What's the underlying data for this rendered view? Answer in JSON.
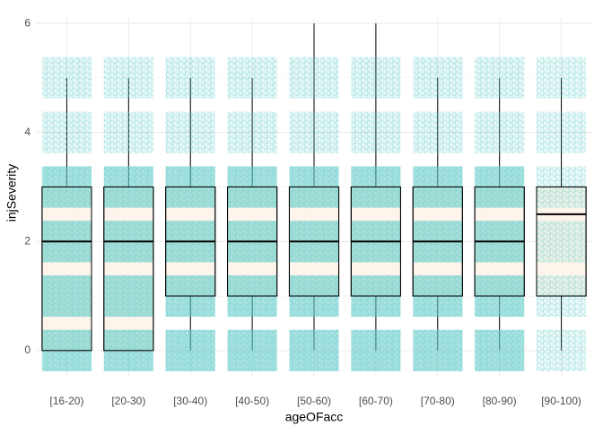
{
  "chart_data": {
    "type": "box",
    "x_label": "ageOFacc",
    "y_label": "injSeverity",
    "categories": [
      "[16-20)",
      "[20-30)",
      "[30-40)",
      "[40-50)",
      "[50-60)",
      "[60-70)",
      "[70-80)",
      "[80-90)",
      "[90-100)"
    ],
    "min": [
      0,
      0,
      0,
      0,
      0,
      0,
      0,
      0,
      0
    ],
    "q1": [
      0,
      0,
      1,
      1,
      1,
      1,
      1,
      1,
      1
    ],
    "median": [
      2,
      2,
      2,
      2,
      2,
      2,
      2,
      2,
      2.5
    ],
    "q3": [
      3,
      3,
      3,
      3,
      3,
      3,
      3,
      3,
      3
    ],
    "max": [
      5,
      5,
      5,
      5,
      6,
      6,
      5,
      5,
      5
    ],
    "point_levels": [
      0,
      1,
      2,
      3,
      4,
      5
    ],
    "point_color": "#5ecbc8",
    "box_color": "#fdf5ec",
    "ylim": [
      -0.48,
      6.1
    ],
    "yticks": [
      0,
      2,
      4,
      6
    ],
    "grid": true
  }
}
